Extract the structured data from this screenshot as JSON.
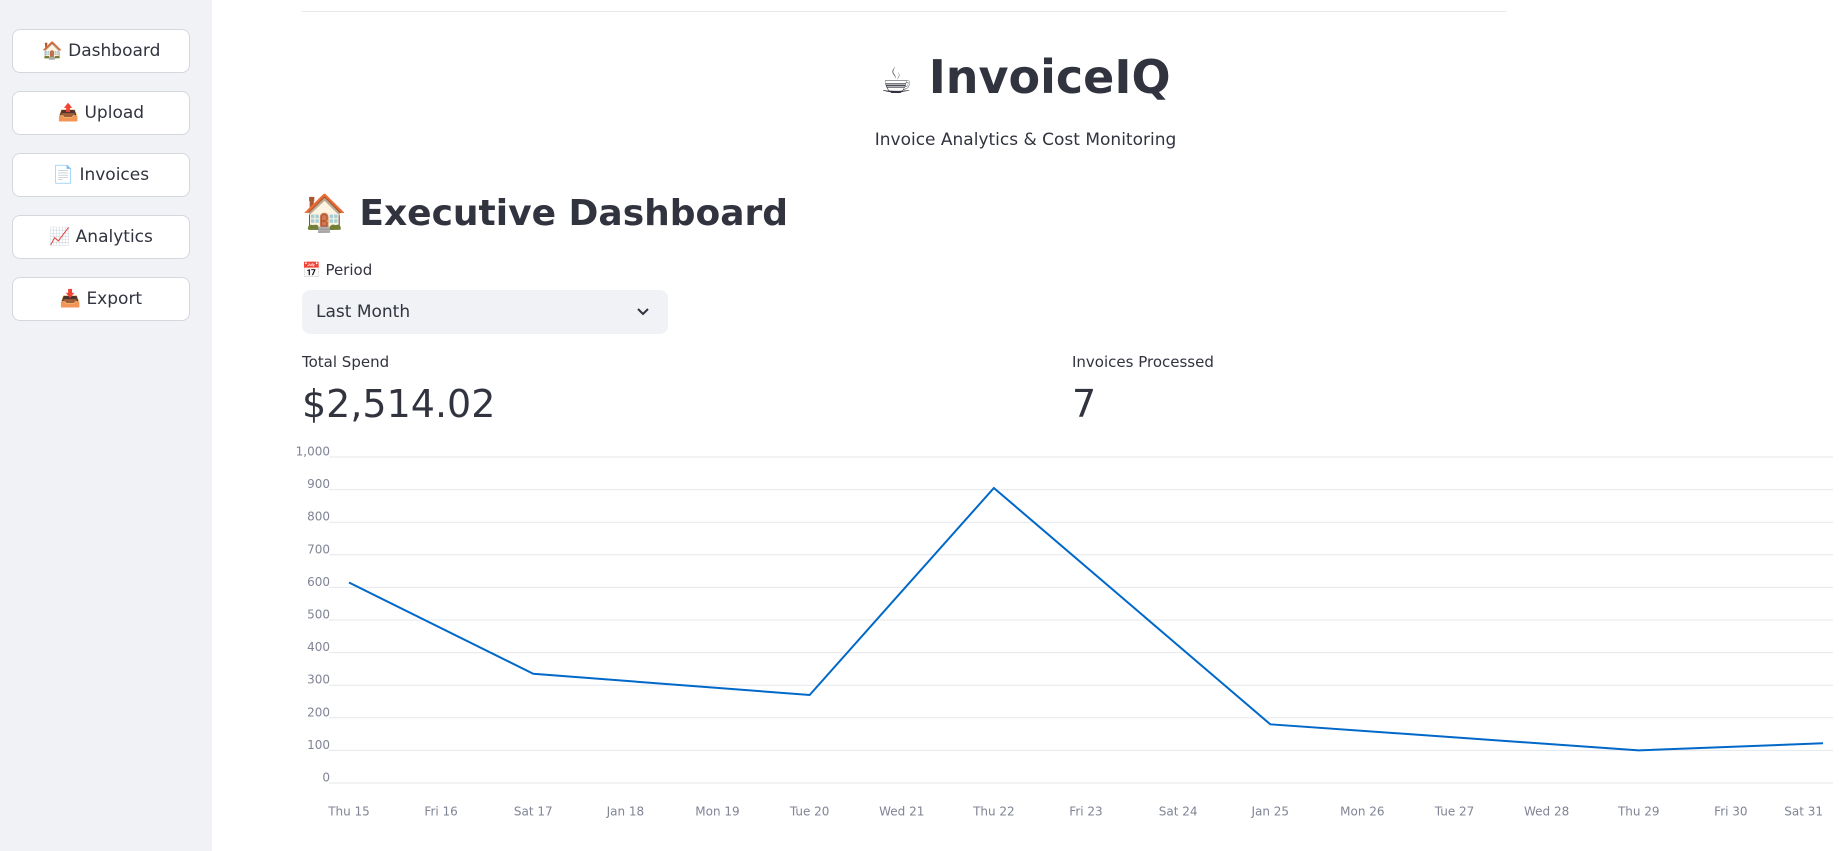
{
  "sidebar": {
    "buttons": [
      "🏠 Dashboard",
      "📤 Upload",
      "📄 Invoices",
      "📈 Analytics",
      "📥 Export"
    ]
  },
  "header": {
    "title": "InvoiceIQ",
    "subtitle": "Invoice Analytics & Cost Monitoring"
  },
  "section_title": "🏠 Executive Dashboard",
  "period": {
    "label": "📅 Period",
    "value": "Last Month"
  },
  "metrics": [
    {
      "label": "Total Spend",
      "value": "$2,514.02"
    },
    {
      "label": "Invoices Processed",
      "value": "7"
    }
  ],
  "chart_data": {
    "type": "line",
    "x": [
      15,
      17,
      20,
      22,
      25,
      29,
      31
    ],
    "series": [
      {
        "color": "#0068c9",
        "values": [
          615,
          335,
          270,
          905,
          180,
          100,
          122
        ]
      }
    ],
    "xlim": [
      15,
      31
    ],
    "xticks": [
      {
        "value": 15,
        "label": "Thu 15"
      },
      {
        "value": 16,
        "label": "Fri 16"
      },
      {
        "value": 17,
        "label": "Sat 17"
      },
      {
        "value": 18,
        "label": "Jan 18"
      },
      {
        "value": 19,
        "label": "Mon 19"
      },
      {
        "value": 20,
        "label": "Tue 20"
      },
      {
        "value": 21,
        "label": "Wed 21"
      },
      {
        "value": 22,
        "label": "Thu 22"
      },
      {
        "value": 23,
        "label": "Fri 23"
      },
      {
        "value": 24,
        "label": "Sat 24"
      },
      {
        "value": 25,
        "label": "Jan 25"
      },
      {
        "value": 26,
        "label": "Mon 26"
      },
      {
        "value": 27,
        "label": "Tue 27"
      },
      {
        "value": 28,
        "label": "Wed 28"
      },
      {
        "value": 29,
        "label": "Thu 29"
      },
      {
        "value": 30,
        "label": "Fri 30"
      },
      {
        "value": 31,
        "label": "Sat 31"
      }
    ],
    "ylim": [
      0,
      1000
    ],
    "yticks": [
      0,
      100,
      200,
      300,
      400,
      500,
      600,
      700,
      800,
      900,
      {
        "value": 1000,
        "label": "1,000"
      }
    ],
    "grid": true
  }
}
